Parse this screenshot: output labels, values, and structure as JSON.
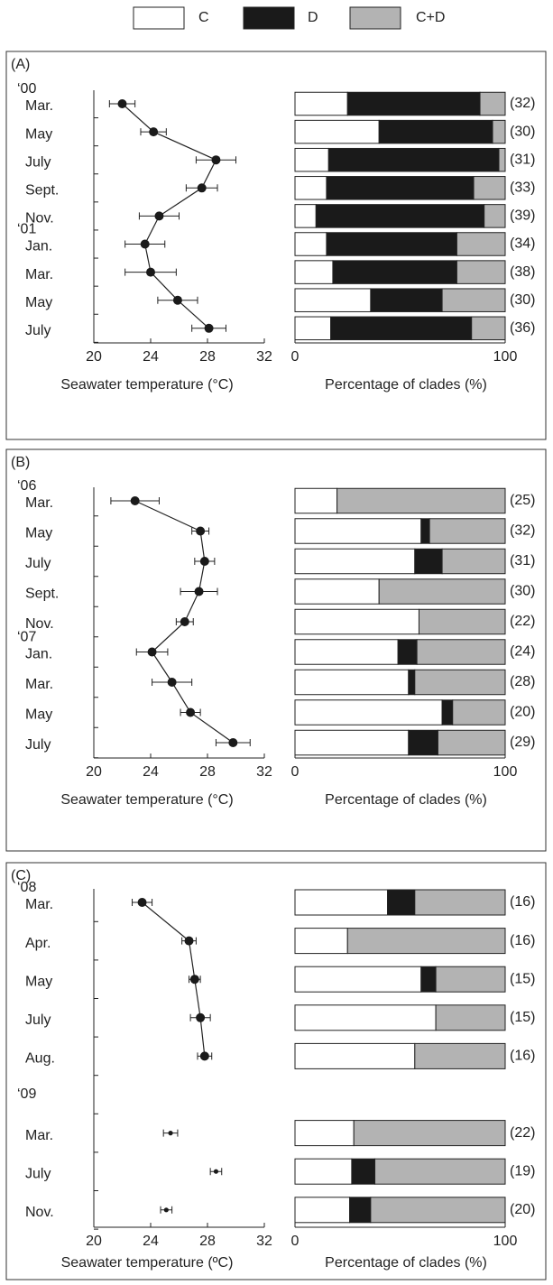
{
  "chart_data": [
    {
      "type": "dotplot",
      "label": "(A)",
      "categories": [
        "Mar.",
        "May",
        "July",
        "Sept.",
        "Nov.",
        "Jan.",
        "Mar.",
        "May",
        "July"
      ],
      "annotations": [
        {
          "text": "‘00",
          "category": 0
        },
        {
          "text": "‘01",
          "category": 5
        }
      ],
      "series": [
        {
          "values": [
            22.0,
            24.2,
            28.6,
            27.6,
            24.6,
            23.6,
            24.0,
            25.9,
            28.1
          ],
          "errors": [
            0.9,
            0.9,
            1.4,
            1.1,
            1.4,
            1.4,
            1.8,
            1.4,
            1.2
          ],
          "connected": true
        }
      ],
      "xlim": [
        20,
        32
      ],
      "xticks": [
        20,
        24,
        28,
        32
      ],
      "xlabel": "Seawater temperature (°C)"
    },
    {
      "type": "stacked_barh",
      "n_labels": [
        "(32)",
        "(30)",
        "(31)",
        "(33)",
        "(39)",
        "(34)",
        "(38)",
        "(30)",
        "(36)"
      ],
      "series": [
        {
          "name": "C",
          "color": "#ffffff",
          "values": [
            25,
            40,
            16,
            15,
            10,
            15,
            18,
            36,
            17
          ]
        },
        {
          "name": "D",
          "color": "#1a1a1a",
          "values": [
            63,
            54,
            81,
            70,
            80,
            62,
            59,
            34,
            67
          ]
        },
        {
          "name": "C+D",
          "color": "#b3b3b3",
          "values": [
            12,
            6,
            3,
            15,
            10,
            23,
            23,
            30,
            16
          ]
        }
      ],
      "xlim": [
        0,
        100
      ],
      "xticks": [
        0,
        100
      ],
      "xlabel": "Percentage of clades (%)"
    },
    {
      "type": "dotplot",
      "label": "(B)",
      "categories": [
        "Mar.",
        "May",
        "July",
        "Sept.",
        "Nov.",
        "Jan.",
        "Mar.",
        "May",
        "July"
      ],
      "annotations": [
        {
          "text": "‘06",
          "category": 0
        },
        {
          "text": "‘07",
          "category": 5
        }
      ],
      "series": [
        {
          "values": [
            22.9,
            27.5,
            27.8,
            27.4,
            26.4,
            24.1,
            25.5,
            26.8,
            29.8
          ],
          "errors": [
            1.7,
            0.6,
            0.7,
            1.3,
            0.6,
            1.1,
            1.4,
            0.7,
            1.2
          ],
          "connected": true
        }
      ],
      "xlim": [
        20,
        32
      ],
      "xticks": [
        20,
        24,
        28,
        32
      ],
      "xlabel": "Seawater temperature (°C)"
    },
    {
      "type": "stacked_barh",
      "n_labels": [
        "(25)",
        "(32)",
        "(31)",
        "(30)",
        "(22)",
        "(24)",
        "(28)",
        "(20)",
        "(29)"
      ],
      "series": [
        {
          "name": "C",
          "color": "#ffffff",
          "values": [
            20,
            60,
            57,
            40,
            59,
            49,
            54,
            70,
            54
          ]
        },
        {
          "name": "D",
          "color": "#1a1a1a",
          "values": [
            0,
            4,
            13,
            0,
            0,
            9,
            3,
            5,
            14
          ]
        },
        {
          "name": "C+D",
          "color": "#b3b3b3",
          "values": [
            80,
            36,
            30,
            60,
            41,
            42,
            43,
            25,
            32
          ]
        }
      ],
      "xlim": [
        0,
        100
      ],
      "xticks": [
        0,
        100
      ],
      "xlabel": "Percentage of clades (%)"
    },
    {
      "type": "dotplot",
      "label": "(C)",
      "categories": [
        "Mar.",
        "Apr.",
        "May",
        "July",
        "Aug.",
        null,
        "Mar.",
        "July",
        "Nov."
      ],
      "annotations": [
        {
          "text": "‘08",
          "category": 0
        },
        {
          "text": "‘09",
          "category": 5
        }
      ],
      "series": [
        {
          "values": [
            23.4,
            26.7,
            27.1,
            27.5,
            27.8,
            null,
            null,
            null,
            null
          ],
          "errors": [
            0.7,
            0.5,
            0.4,
            0.7,
            0.5,
            null,
            null,
            null,
            null
          ],
          "connected": true
        },
        {
          "values": [
            null,
            null,
            null,
            null,
            null,
            null,
            25.4,
            28.6,
            25.1
          ],
          "errors": [
            null,
            null,
            null,
            null,
            null,
            null,
            0.5,
            0.4,
            0.4
          ],
          "connected": false
        }
      ],
      "xlim": [
        20,
        32
      ],
      "xticks": [
        20,
        24,
        28,
        32
      ],
      "xlabel": "Seawater temperature (ºC)"
    },
    {
      "type": "stacked_barh",
      "n_labels": [
        "(16)",
        "(16)",
        "(15)",
        "(15)",
        "(16)",
        null,
        "(22)",
        "(19)",
        "(20)"
      ],
      "series": [
        {
          "name": "C",
          "color": "#ffffff",
          "values": [
            44,
            25,
            60,
            67,
            57,
            null,
            28,
            27,
            26
          ]
        },
        {
          "name": "D",
          "color": "#1a1a1a",
          "values": [
            13,
            0,
            7,
            0,
            0,
            null,
            0,
            11,
            10
          ]
        },
        {
          "name": "C+D",
          "color": "#b3b3b3",
          "values": [
            43,
            75,
            33,
            33,
            43,
            null,
            72,
            62,
            64
          ]
        }
      ],
      "xlim": [
        0,
        100
      ],
      "xticks": [
        0,
        100
      ],
      "xlabel": "Percentage of clades (%)"
    }
  ]
}
